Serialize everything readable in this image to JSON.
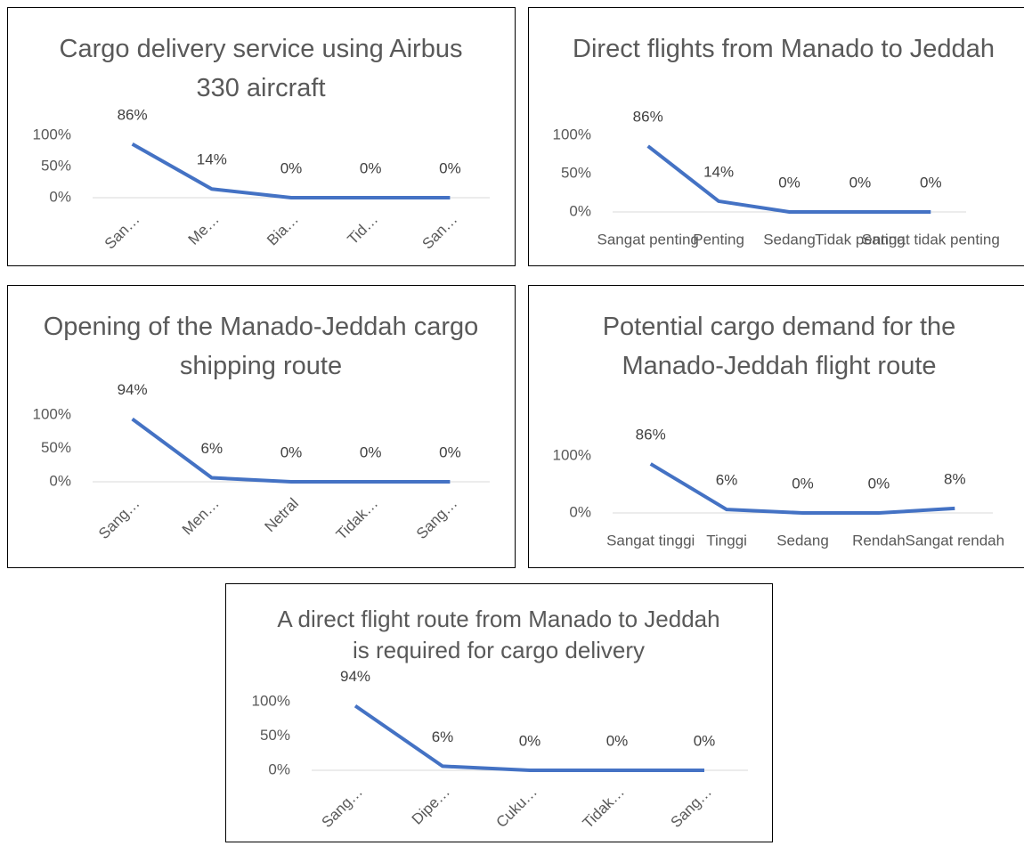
{
  "chart_data": [
    {
      "type": "line",
      "title": "Cargo delivery service using Airbus 330 aircraft",
      "categories": [
        "San…",
        "Me…",
        "Bia…",
        "Tid…",
        "San…"
      ],
      "values": [
        86,
        14,
        0,
        0,
        0
      ],
      "value_labels": [
        "86%",
        "14%",
        "0%",
        "0%",
        "0%"
      ],
      "color": "#4472c4",
      "ylim": [
        0,
        100
      ],
      "yticks": [
        {
          "value": 0,
          "label": "0%"
        },
        {
          "value": 50,
          "label": "50%"
        },
        {
          "value": 100,
          "label": "100%"
        }
      ]
    },
    {
      "type": "line",
      "title": "Direct flights from Manado to Jeddah",
      "categories": [
        "Sangat penting",
        "Penting",
        "Sedang",
        "Tidak penting",
        "Sangat tidak penting"
      ],
      "values": [
        86,
        14,
        0,
        0,
        0
      ],
      "value_labels": [
        "86%",
        "14%",
        "0%",
        "0%",
        "0%"
      ],
      "color": "#4472c4",
      "ylim": [
        0,
        100
      ],
      "yticks": [
        {
          "value": 0,
          "label": "0%"
        },
        {
          "value": 50,
          "label": "50%"
        },
        {
          "value": 100,
          "label": "100%"
        }
      ]
    },
    {
      "type": "line",
      "title": "Opening of the Manado-Jeddah cargo shipping route",
      "categories": [
        "Sang…",
        "Men…",
        "Netral",
        "Tidak…",
        "Sang…"
      ],
      "values": [
        94,
        6,
        0,
        0,
        0
      ],
      "value_labels": [
        "94%",
        "6%",
        "0%",
        "0%",
        "0%"
      ],
      "color": "#4472c4",
      "ylim": [
        0,
        100
      ],
      "yticks": [
        {
          "value": 0,
          "label": "0%"
        },
        {
          "value": 50,
          "label": "50%"
        },
        {
          "value": 100,
          "label": "100%"
        }
      ]
    },
    {
      "type": "line",
      "title": "Potential cargo demand for the Manado-Jeddah flight route",
      "categories": [
        "Sangat tinggi",
        "Tinggi",
        "Sedang",
        "Rendah",
        "Sangat rendah"
      ],
      "values": [
        86,
        6,
        0,
        0,
        8
      ],
      "value_labels": [
        "86%",
        "6%",
        "0%",
        "0%",
        "8%"
      ],
      "color": "#4472c4",
      "ylim": [
        0,
        100
      ],
      "yticks": [
        {
          "value": 0,
          "label": "0%"
        },
        {
          "value": 100,
          "label": "100%"
        }
      ]
    },
    {
      "type": "line",
      "title": "A direct flight route from Manado to Jeddah is required for cargo delivery",
      "categories": [
        "Sang…",
        "Dipe…",
        "Cuku…",
        "Tidak…",
        "Sang…"
      ],
      "values": [
        94,
        6,
        0,
        0,
        0
      ],
      "value_labels": [
        "94%",
        "6%",
        "0%",
        "0%",
        "0%"
      ],
      "color": "#4472c4",
      "ylim": [
        0,
        100
      ],
      "yticks": [
        {
          "value": 0,
          "label": "0%"
        },
        {
          "value": 50,
          "label": "50%"
        },
        {
          "value": 100,
          "label": "100%"
        }
      ]
    }
  ]
}
